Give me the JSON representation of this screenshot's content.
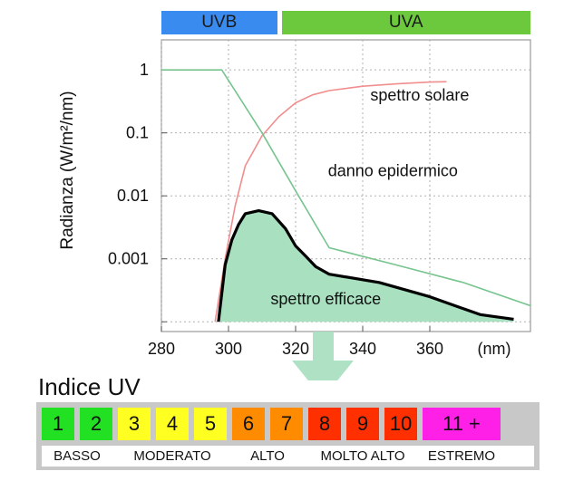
{
  "chart_data": {
    "type": "line",
    "ylabel": "Radianza (W/m²/nm)",
    "xlabel": "",
    "x_unit_label": "(nm)",
    "x_ticks": [
      280,
      300,
      320,
      340,
      360
    ],
    "y_ticks": [
      {
        "value": 1,
        "label": "1"
      },
      {
        "value": 0.1,
        "label": "0.1"
      },
      {
        "value": 0.01,
        "label": "0.01"
      },
      {
        "value": 0.001,
        "label": "0.001"
      },
      {
        "value": 0.0001,
        "label": ""
      }
    ],
    "xlim": [
      280,
      390
    ],
    "ylim": [
      7e-05,
      3
    ],
    "y_scale": "log",
    "grid": true,
    "bands": [
      {
        "label": "UVB",
        "x_start": 280,
        "x_end": 315,
        "color": "#3a8bf0"
      },
      {
        "label": "UVA",
        "x_start": 315,
        "x_end": 390,
        "color": "#6cc83c"
      }
    ],
    "series": [
      {
        "name": "spettro solare",
        "color": "#f08e8e",
        "label_at": [
          357,
          0.4
        ],
        "points": [
          [
            296,
            0.0001
          ],
          [
            299,
            0.001
          ],
          [
            302,
            0.007
          ],
          [
            305,
            0.03
          ],
          [
            310,
            0.09
          ],
          [
            315,
            0.18
          ],
          [
            320,
            0.3
          ],
          [
            325,
            0.4
          ],
          [
            330,
            0.47
          ],
          [
            340,
            0.55
          ],
          [
            350,
            0.6
          ],
          [
            360,
            0.64
          ],
          [
            365,
            0.65
          ]
        ]
      },
      {
        "name": "danno epidermico",
        "color": "#76c48e",
        "label_at": [
          349,
          0.025
        ],
        "points": [
          [
            280,
            1
          ],
          [
            298,
            1
          ],
          [
            310,
            0.1
          ],
          [
            320,
            0.012
          ],
          [
            330,
            0.0015
          ],
          [
            350,
            0.0008
          ],
          [
            370,
            0.00042
          ],
          [
            390,
            0.00018
          ]
        ]
      },
      {
        "name": "spettro efficace",
        "color": "#000000",
        "fill": "#a8e0c0",
        "label_at": [
          329,
          0.00023
        ],
        "points": [
          [
            297,
            0.0001
          ],
          [
            299,
            0.0008
          ],
          [
            301,
            0.002
          ],
          [
            303,
            0.0035
          ],
          [
            305,
            0.0052
          ],
          [
            309,
            0.0058
          ],
          [
            313,
            0.0052
          ],
          [
            317,
            0.003
          ],
          [
            320,
            0.0016
          ],
          [
            323,
            0.0011
          ],
          [
            326,
            0.00075
          ],
          [
            330,
            0.00057
          ],
          [
            345,
            0.00042
          ],
          [
            360,
            0.00025
          ],
          [
            375,
            0.00013
          ],
          [
            385,
            0.00011
          ]
        ]
      }
    ]
  },
  "uv_index": {
    "title": "Indice UV",
    "levels": [
      {
        "label": "1",
        "color": "#22e022"
      },
      {
        "label": "2",
        "color": "#22e022"
      },
      {
        "label": "3",
        "color": "#ffff22"
      },
      {
        "label": "4",
        "color": "#ffff22"
      },
      {
        "label": "5",
        "color": "#ffff22"
      },
      {
        "label": "6",
        "color": "#ff8c00"
      },
      {
        "label": "7",
        "color": "#ff8c00"
      },
      {
        "label": "8",
        "color": "#ff3000"
      },
      {
        "label": "9",
        "color": "#ff3000"
      },
      {
        "label": "10",
        "color": "#ff3000"
      },
      {
        "label": "11 +",
        "color": "#ff20e8"
      }
    ],
    "categories": [
      {
        "label": "BASSO",
        "from": 0,
        "to": 1
      },
      {
        "label": "MODERATO",
        "from": 2,
        "to": 4
      },
      {
        "label": "ALTO",
        "from": 5,
        "to": 6
      },
      {
        "label": "MOLTO ALTO",
        "from": 7,
        "to": 9
      },
      {
        "label": "ESTREMO",
        "from": 10,
        "to": 10
      }
    ]
  }
}
